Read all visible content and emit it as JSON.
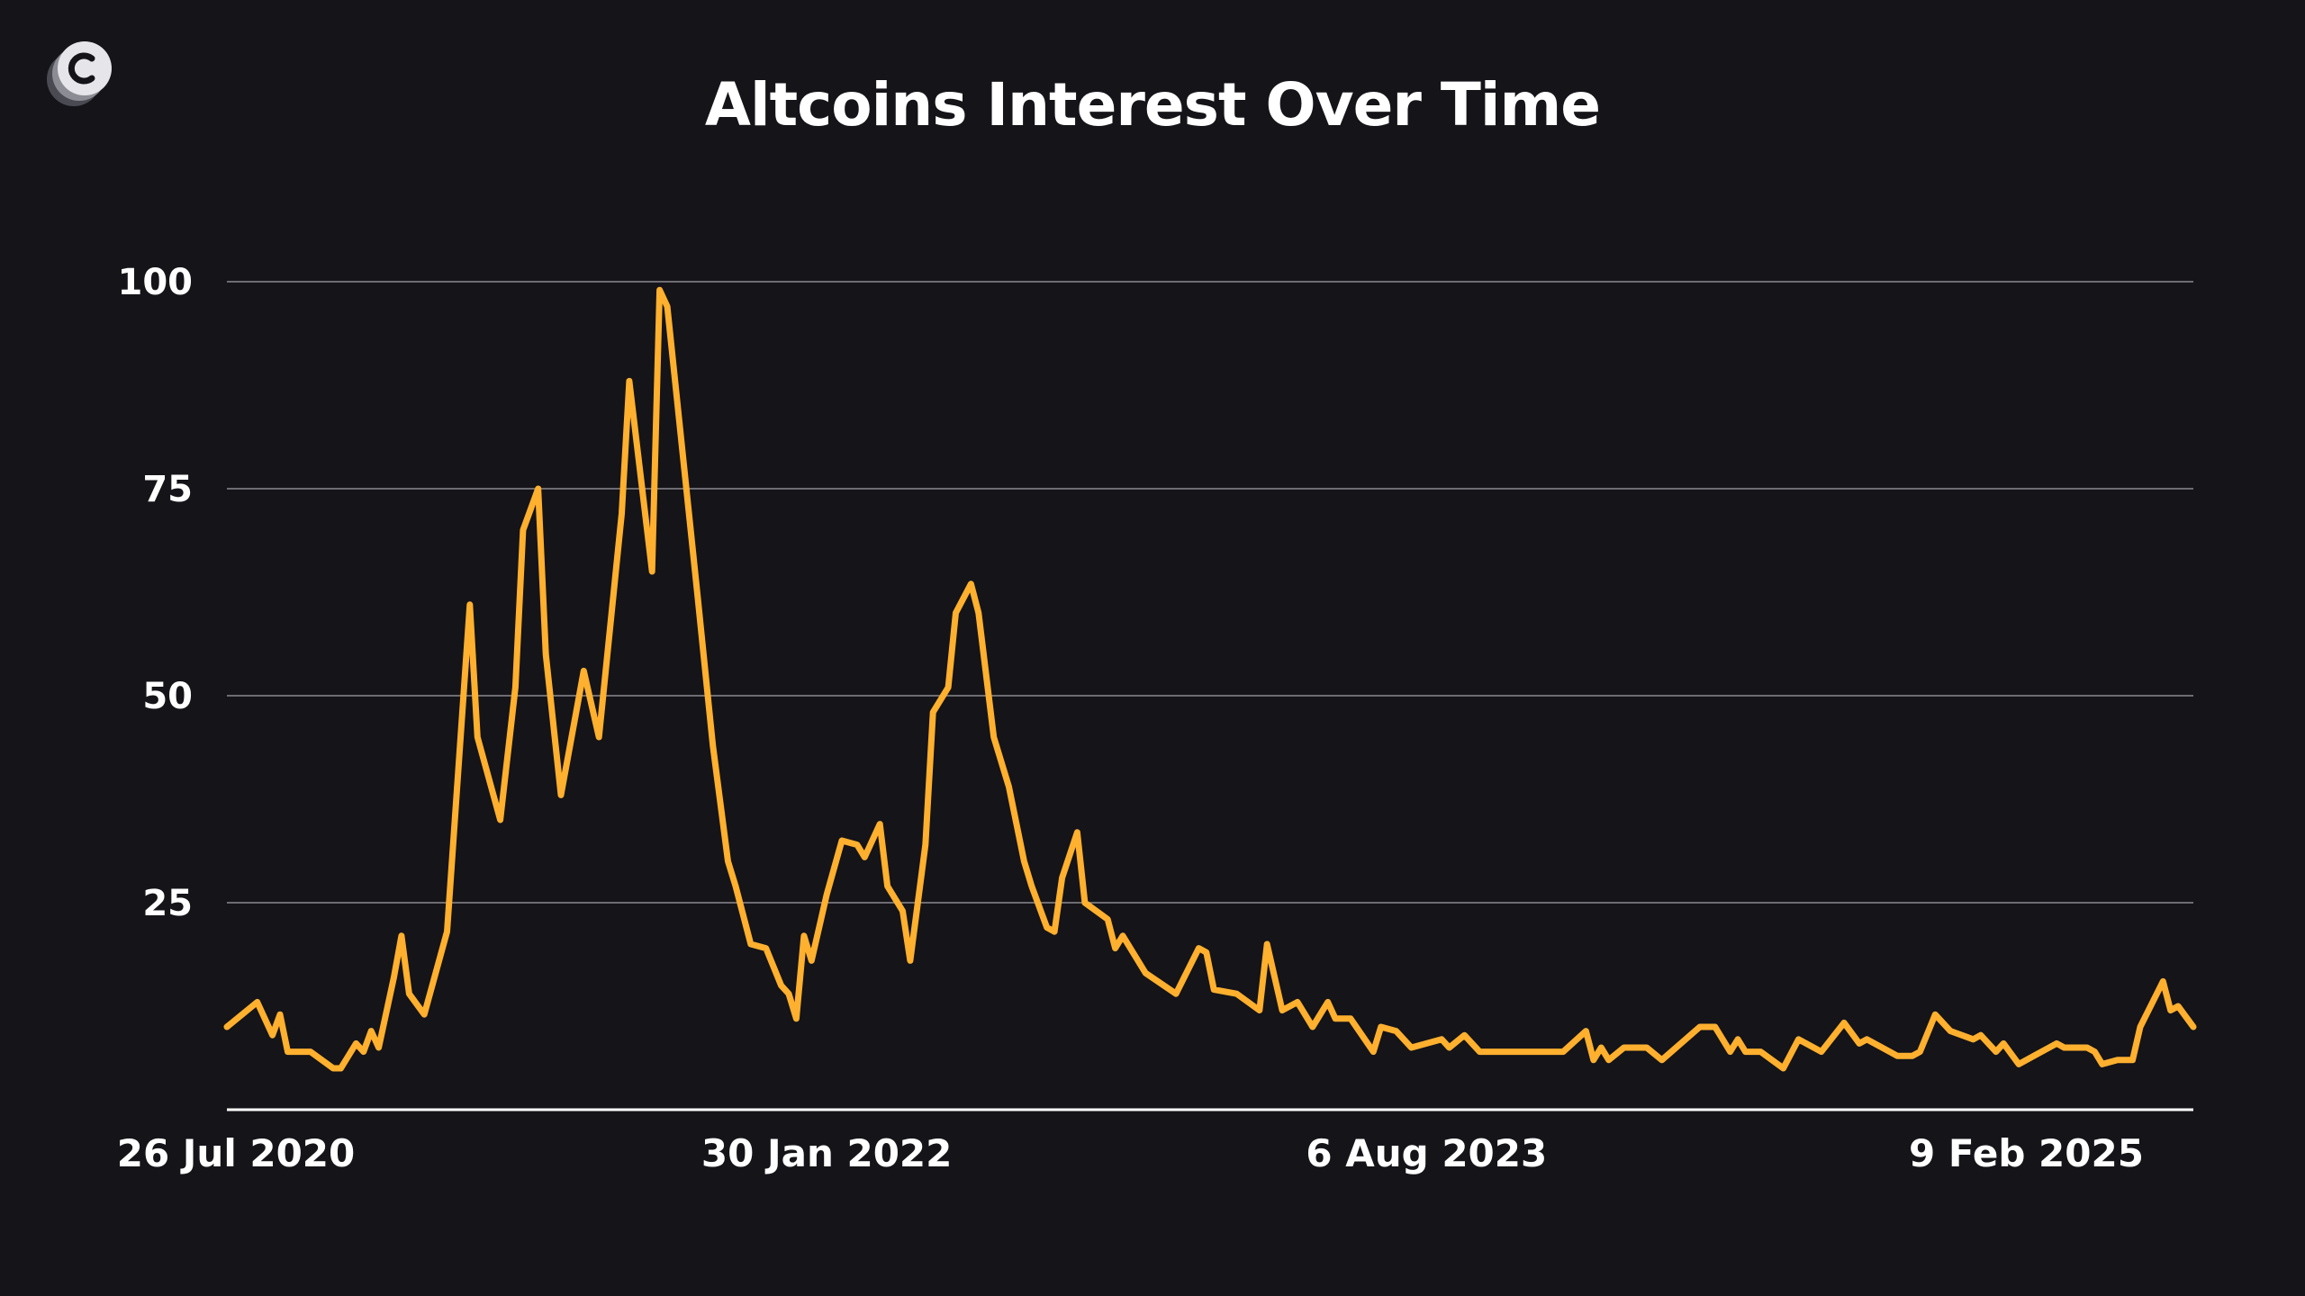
{
  "chart_data": {
    "type": "line",
    "title": "Altcoins Interest Over Time",
    "xlabel": "",
    "ylabel": "",
    "ylim": [
      0,
      100
    ],
    "grid": true,
    "y_ticks": [
      "100",
      "75",
      "50",
      "25"
    ],
    "y_tick_values": [
      100,
      75,
      50,
      25
    ],
    "x_tick_labels": [
      {
        "label": "26 Jul 2020",
        "date": "2020-07-26"
      },
      {
        "label": "30 Jan 2022",
        "date": "2022-01-30"
      },
      {
        "label": "6 Aug 2023",
        "date": "2023-08-06"
      },
      {
        "label": "9 Feb 2025",
        "date": "2025-02-09"
      }
    ],
    "x_range": [
      "2020-07-26",
      "2025-07-13"
    ],
    "series": [
      {
        "color": "#FFB02E",
        "points": [
          [
            "2020-07-26",
            10
          ],
          [
            "2020-08-23",
            13
          ],
          [
            "2020-09-06",
            9
          ],
          [
            "2020-09-13",
            11.5
          ],
          [
            "2020-09-20",
            7
          ],
          [
            "2020-10-11",
            7
          ],
          [
            "2020-11-01",
            5
          ],
          [
            "2020-11-08",
            5
          ],
          [
            "2020-11-22",
            8
          ],
          [
            "2020-11-29",
            7
          ],
          [
            "2020-12-06",
            9.5
          ],
          [
            "2020-12-13",
            7.5
          ],
          [
            "2020-12-27",
            16
          ],
          [
            "2021-01-03",
            21
          ],
          [
            "2021-01-10",
            14
          ],
          [
            "2021-01-24",
            11.5
          ],
          [
            "2021-02-14",
            21.5
          ],
          [
            "2021-03-07",
            61
          ],
          [
            "2021-03-14",
            45
          ],
          [
            "2021-04-04",
            35
          ],
          [
            "2021-04-18",
            51
          ],
          [
            "2021-04-25",
            70
          ],
          [
            "2021-05-09",
            75
          ],
          [
            "2021-05-16",
            55
          ],
          [
            "2021-05-30",
            38
          ],
          [
            "2021-06-13",
            48
          ],
          [
            "2021-06-20",
            53
          ],
          [
            "2021-07-04",
            45
          ],
          [
            "2021-07-25",
            72
          ],
          [
            "2021-08-01",
            88
          ],
          [
            "2021-08-22",
            65
          ],
          [
            "2021-08-29",
            99
          ],
          [
            "2021-09-05",
            97
          ],
          [
            "2021-10-03",
            62
          ],
          [
            "2021-10-17",
            44
          ],
          [
            "2021-10-31",
            30
          ],
          [
            "2021-11-07",
            27
          ],
          [
            "2021-11-21",
            20
          ],
          [
            "2021-12-05",
            19.5
          ],
          [
            "2021-12-19",
            15
          ],
          [
            "2021-12-26",
            14
          ],
          [
            "2022-01-02",
            11
          ],
          [
            "2022-01-09",
            21
          ],
          [
            "2022-01-16",
            18
          ],
          [
            "2022-01-30",
            26
          ],
          [
            "2022-02-13",
            32.5
          ],
          [
            "2022-02-27",
            32
          ],
          [
            "2022-03-06",
            30.5
          ],
          [
            "2022-03-20",
            34.5
          ],
          [
            "2022-03-27",
            27
          ],
          [
            "2022-04-10",
            24
          ],
          [
            "2022-04-17",
            18
          ],
          [
            "2022-05-01",
            32
          ],
          [
            "2022-05-08",
            48
          ],
          [
            "2022-05-22",
            51
          ],
          [
            "2022-05-29",
            60
          ],
          [
            "2022-06-12",
            63.5
          ],
          [
            "2022-06-19",
            60
          ],
          [
            "2022-07-03",
            45
          ],
          [
            "2022-07-17",
            39
          ],
          [
            "2022-07-31",
            30
          ],
          [
            "2022-08-07",
            27
          ],
          [
            "2022-08-21",
            22
          ],
          [
            "2022-08-28",
            21.5
          ],
          [
            "2022-09-04",
            28
          ],
          [
            "2022-09-18",
            33.5
          ],
          [
            "2022-09-25",
            25
          ],
          [
            "2022-10-16",
            23
          ],
          [
            "2022-10-23",
            19.5
          ],
          [
            "2022-10-30",
            21
          ],
          [
            "2022-11-20",
            16.5
          ],
          [
            "2022-12-18",
            14
          ],
          [
            "2023-01-08",
            19.5
          ],
          [
            "2023-01-15",
            19
          ],
          [
            "2023-01-22",
            14.5
          ],
          [
            "2023-02-12",
            14
          ],
          [
            "2023-03-05",
            12
          ],
          [
            "2023-03-12",
            20
          ],
          [
            "2023-03-26",
            12
          ],
          [
            "2023-04-09",
            13
          ],
          [
            "2023-04-23",
            10
          ],
          [
            "2023-05-07",
            13
          ],
          [
            "2023-05-14",
            11
          ],
          [
            "2023-05-28",
            11
          ],
          [
            "2023-06-18",
            7
          ],
          [
            "2023-06-25",
            10
          ],
          [
            "2023-07-09",
            9.5
          ],
          [
            "2023-07-23",
            7.5
          ],
          [
            "2023-08-20",
            8.5
          ],
          [
            "2023-08-27",
            7.5
          ],
          [
            "2023-09-10",
            9
          ],
          [
            "2023-09-24",
            7
          ],
          [
            "2023-12-10",
            7
          ],
          [
            "2023-12-31",
            9.5
          ],
          [
            "2024-01-07",
            6
          ],
          [
            "2024-01-14",
            7.5
          ],
          [
            "2024-01-21",
            6
          ],
          [
            "2024-02-04",
            7.5
          ],
          [
            "2024-02-25",
            7.5
          ],
          [
            "2024-03-10",
            6
          ],
          [
            "2024-04-14",
            10
          ],
          [
            "2024-04-28",
            10
          ],
          [
            "2024-05-12",
            7
          ],
          [
            "2024-05-19",
            8.5
          ],
          [
            "2024-05-26",
            7
          ],
          [
            "2024-06-09",
            7
          ],
          [
            "2024-06-30",
            5
          ],
          [
            "2024-07-14",
            8.5
          ],
          [
            "2024-08-04",
            7
          ],
          [
            "2024-08-25",
            10.5
          ],
          [
            "2024-09-08",
            8
          ],
          [
            "2024-09-15",
            8.5
          ],
          [
            "2024-10-06",
            7
          ],
          [
            "2024-10-13",
            6.5
          ],
          [
            "2024-10-27",
            6.5
          ],
          [
            "2024-11-03",
            7
          ],
          [
            "2024-11-17",
            11.5
          ],
          [
            "2024-12-01",
            9.5
          ],
          [
            "2024-12-22",
            8.5
          ],
          [
            "2024-12-29",
            9
          ],
          [
            "2025-01-12",
            7
          ],
          [
            "2025-01-19",
            8
          ],
          [
            "2025-02-02",
            5.5
          ],
          [
            "2025-02-16",
            6.5
          ],
          [
            "2025-03-09",
            8
          ],
          [
            "2025-03-16",
            7.5
          ],
          [
            "2025-04-06",
            7.5
          ],
          [
            "2025-04-13",
            7
          ],
          [
            "2025-04-20",
            5.5
          ],
          [
            "2025-05-04",
            6
          ],
          [
            "2025-05-18",
            6
          ],
          [
            "2025-05-25",
            10
          ],
          [
            "2025-06-15",
            15.5
          ],
          [
            "2025-06-22",
            12
          ],
          [
            "2025-06-29",
            12.5
          ],
          [
            "2025-07-13",
            10
          ]
        ]
      }
    ]
  },
  "branding": {
    "logo_icon": "c-logo-icon"
  }
}
